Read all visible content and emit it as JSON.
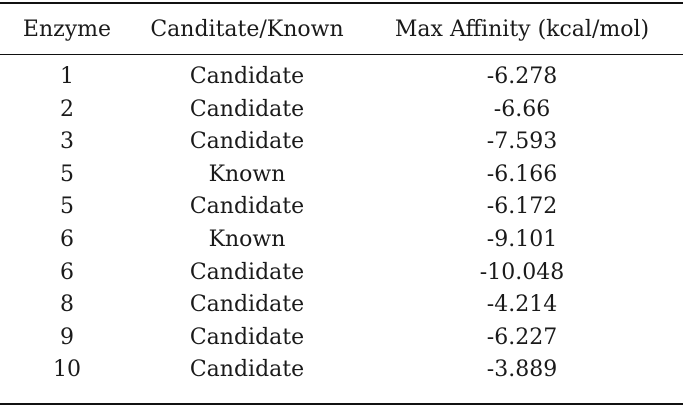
{
  "table": {
    "headers": [
      "Enzyme",
      "Canditate/Known",
      "Max Affinity (kcal/mol)"
    ],
    "rows": [
      [
        "1",
        "Candidate",
        "-6.278"
      ],
      [
        "2",
        "Candidate",
        "-6.66"
      ],
      [
        "3",
        "Candidate",
        "-7.593"
      ],
      [
        "5",
        "Known",
        "-6.166"
      ],
      [
        "5",
        "Candidate",
        "-6.172"
      ],
      [
        "6",
        "Known",
        "-9.101"
      ],
      [
        "6",
        "Candidate",
        "-10.048"
      ],
      [
        "8",
        "Candidate",
        "-4.214"
      ],
      [
        "9",
        "Candidate",
        "-6.227"
      ],
      [
        "10",
        "Candidate",
        "-3.889"
      ]
    ]
  }
}
